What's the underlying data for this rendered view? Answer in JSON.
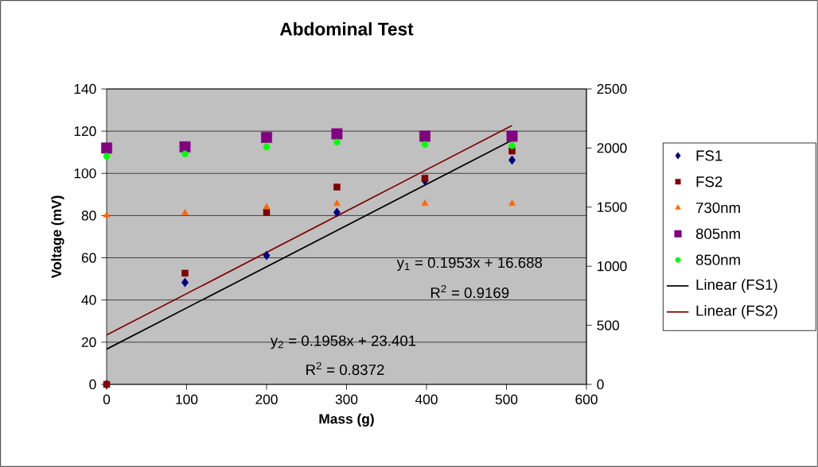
{
  "chart_data": {
    "type": "scatter",
    "title": "Abdominal Test",
    "xlabel": "Mass (g)",
    "ylabel": "Voltage (mV)",
    "xlim": [
      0,
      600
    ],
    "xticks": [
      0,
      100,
      200,
      300,
      400,
      500,
      600
    ],
    "ylim": [
      0,
      140
    ],
    "yticks": [
      0,
      20,
      40,
      60,
      80,
      100,
      120,
      140
    ],
    "y2lim": [
      0,
      2500
    ],
    "y2ticks": [
      0,
      500,
      1000,
      1500,
      2000,
      2500
    ],
    "grid": "y",
    "legend": "right",
    "series": [
      {
        "name": "FS1",
        "marker": "diamond",
        "color": "#000080",
        "x": [
          0,
          98,
          200,
          288,
          398,
          507
        ],
        "values": [
          0,
          48.3,
          61.1,
          81.5,
          96.5,
          106.3
        ]
      },
      {
        "name": "FS2",
        "marker": "square",
        "color": "#800000",
        "x": [
          0,
          98,
          200,
          288,
          398,
          507
        ],
        "values": [
          0,
          52.7,
          81.5,
          93.5,
          97.7,
          110.6
        ]
      },
      {
        "name": "730nm",
        "marker": "triangle",
        "color": "#ff6600",
        "axis": "y2",
        "x": [
          0,
          98,
          200,
          288,
          398,
          507
        ],
        "values": [
          1430,
          1450,
          1500,
          1530,
          1530,
          1530
        ]
      },
      {
        "name": "805nm",
        "marker": "square",
        "color": "#800080",
        "axis": "y2",
        "x": [
          0,
          98,
          200,
          288,
          398,
          507
        ],
        "values": [
          2000,
          2010,
          2090,
          2120,
          2100,
          2100
        ]
      },
      {
        "name": "850nm",
        "marker": "circle",
        "color": "#00ff00",
        "axis": "y2",
        "x": [
          0,
          98,
          200,
          288,
          398,
          507
        ],
        "values": [
          1930,
          1950,
          2010,
          2050,
          2030,
          2020
        ]
      },
      {
        "name": "Linear (FS1)",
        "type": "line",
        "line_style": "solid",
        "color": "#000000",
        "x": [
          0,
          507
        ],
        "values": [
          16.7,
          115.7
        ]
      },
      {
        "name": "Linear (FS2)",
        "type": "line",
        "line_style": "solid",
        "color": "#800000",
        "x": [
          0,
          507
        ],
        "values": [
          23.4,
          122.7
        ]
      }
    ],
    "annotations": [
      "y$_{1}$ = 0.1953x + 16.688",
      "R$^{2}$ = 0.9169",
      "y$_{2}$ = 0.1958x + 23.401",
      "R$^{2}$ = 0.8372"
    ]
  }
}
